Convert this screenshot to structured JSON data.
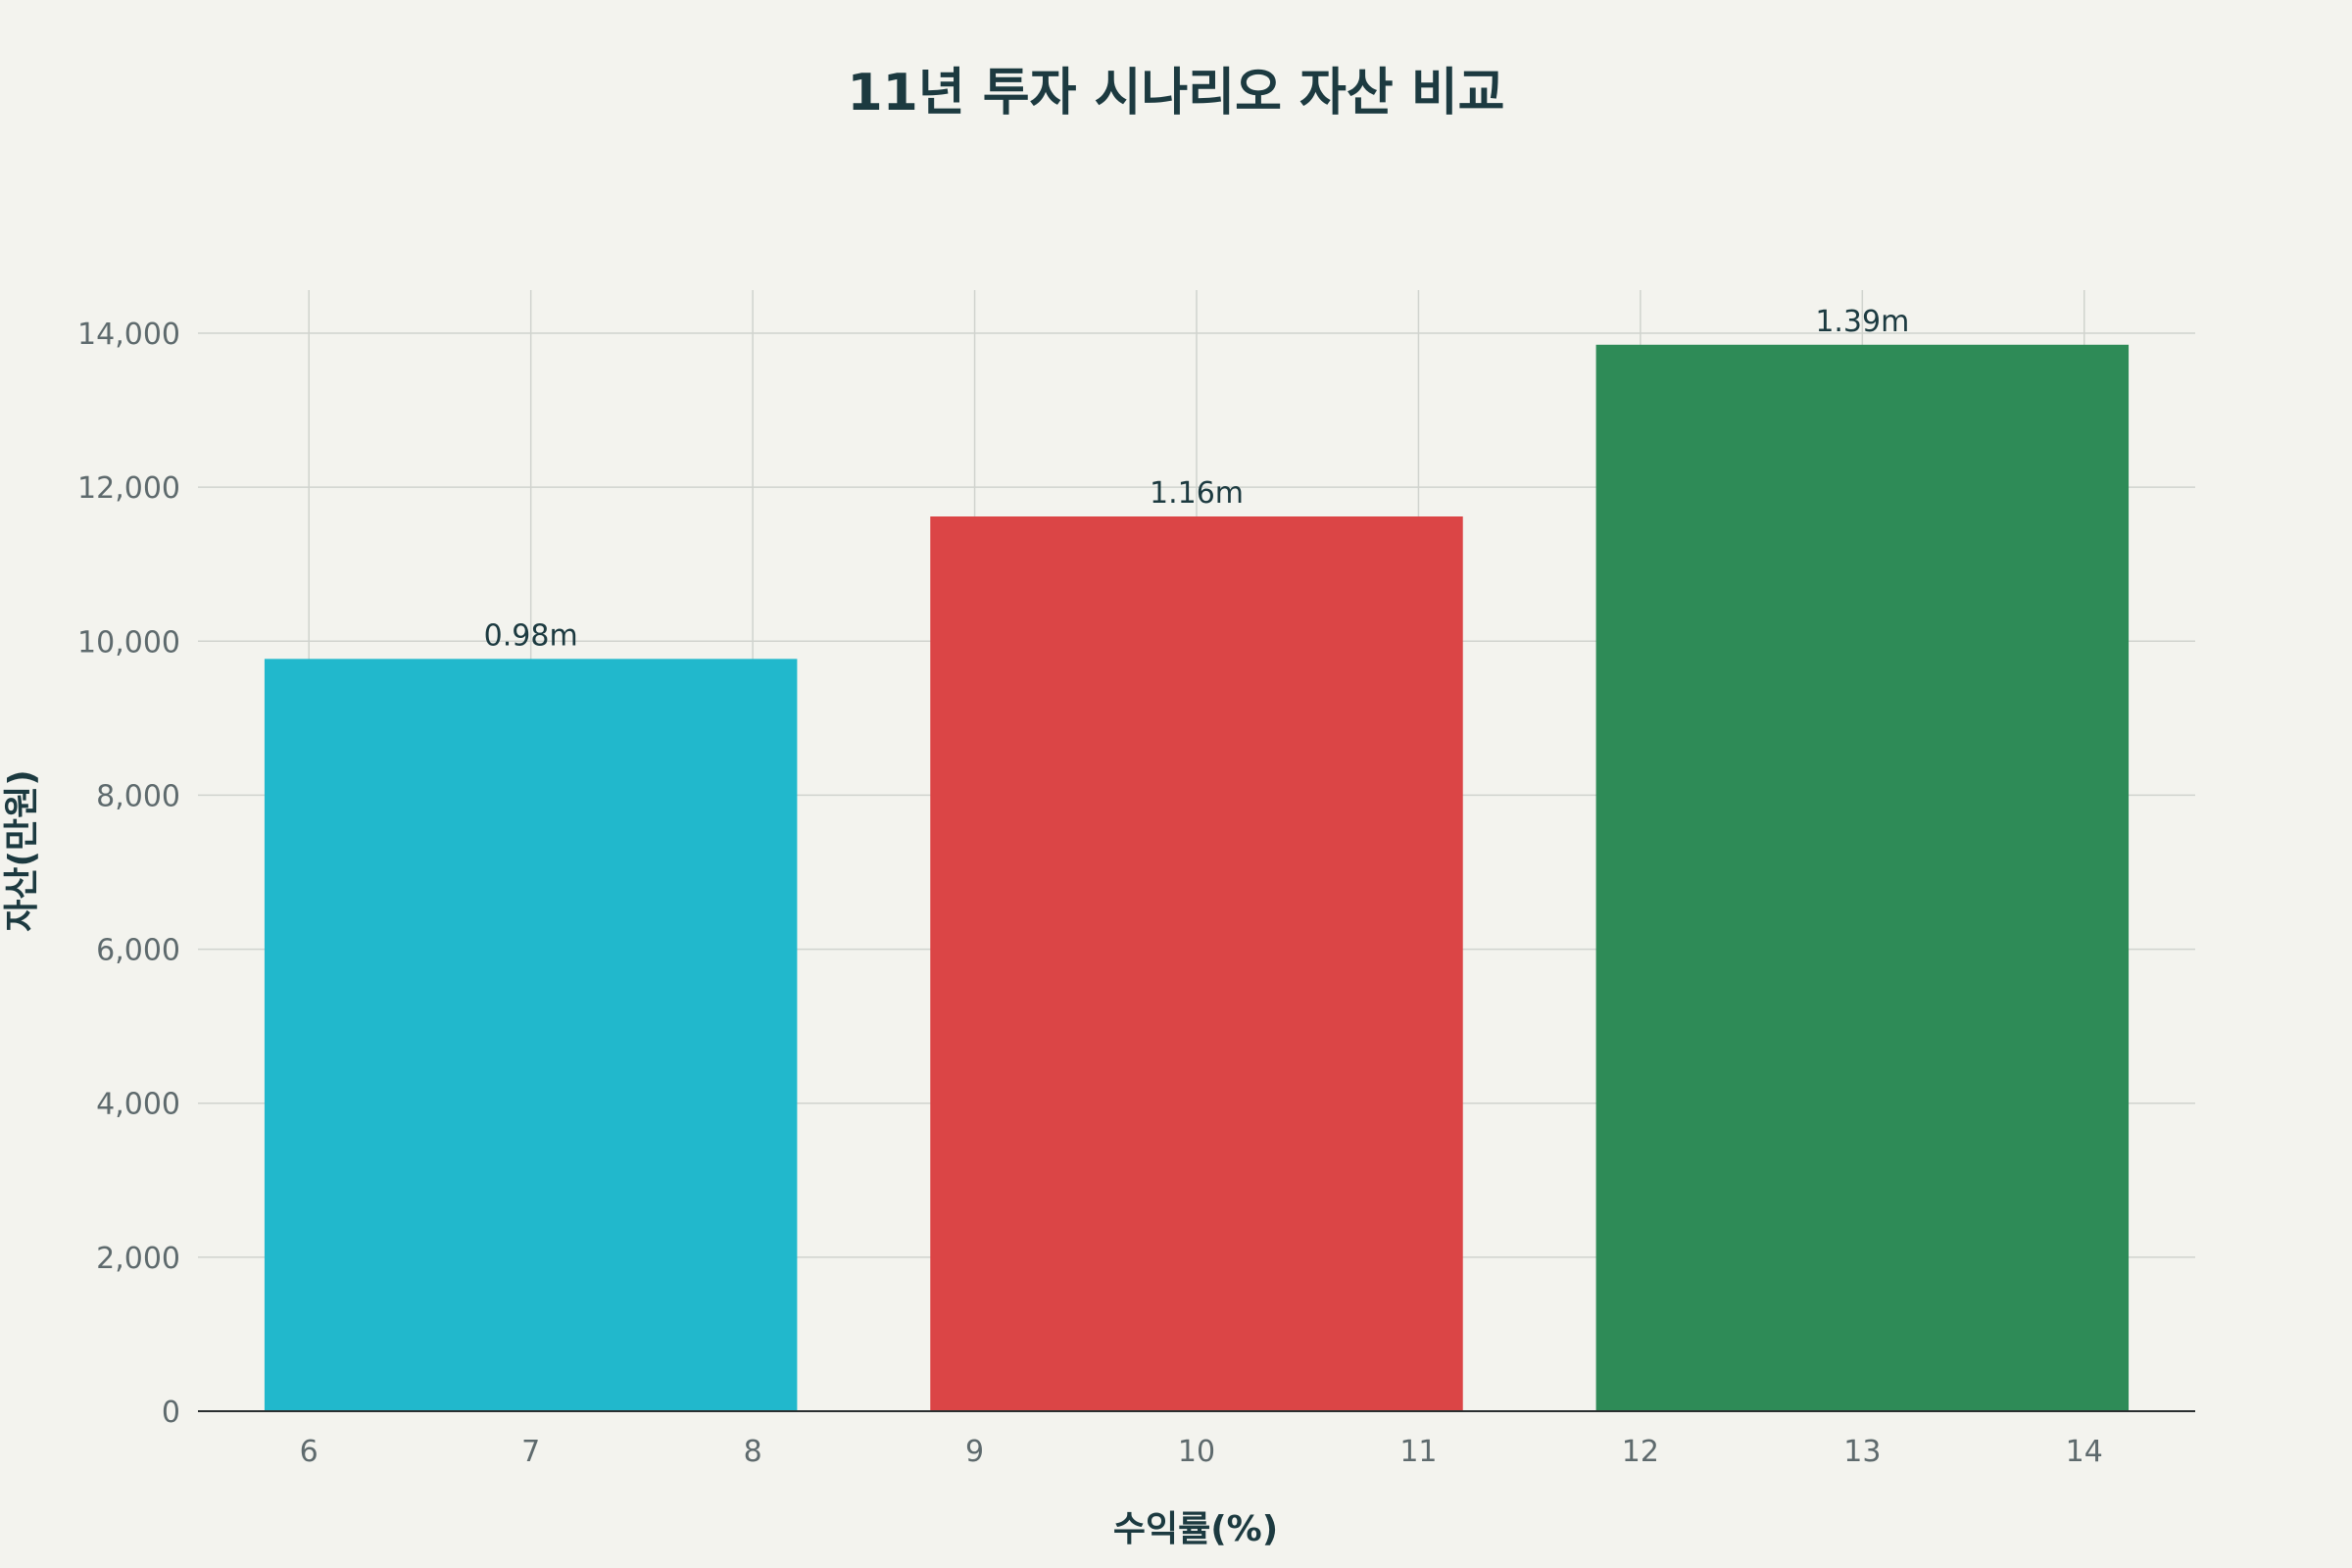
{
  "chart_data": {
    "type": "bar",
    "title": "11년 투자 시나리오 자산 비교",
    "xlabel": "수익률(%)",
    "ylabel": "자산(만원)",
    "x_ticks": [
      6,
      7,
      8,
      9,
      10,
      11,
      12,
      13,
      14
    ],
    "x_tick_labels": [
      "6",
      "7",
      "8",
      "9",
      "10",
      "11",
      "12",
      "13",
      "14"
    ],
    "y_ticks": [
      0,
      2000,
      4000,
      6000,
      8000,
      10000,
      12000,
      14000
    ],
    "y_tick_labels": [
      "0",
      "2,000",
      "4,000",
      "6,000",
      "8,000",
      "10,000",
      "12,000",
      "14,000"
    ],
    "xlim": [
      5.5,
      14.5
    ],
    "ylim": [
      0,
      14560
    ],
    "grid": true,
    "bars": [
      {
        "x": 7,
        "width": 2.4,
        "value": 9770,
        "label": "0.98m",
        "color": "#21b8cc"
      },
      {
        "x": 10,
        "width": 2.4,
        "value": 11620,
        "label": "1.16m",
        "color": "#db4546"
      },
      {
        "x": 13,
        "width": 2.4,
        "value": 13850,
        "label": "1.39m",
        "color": "#2e8b57"
      }
    ]
  }
}
